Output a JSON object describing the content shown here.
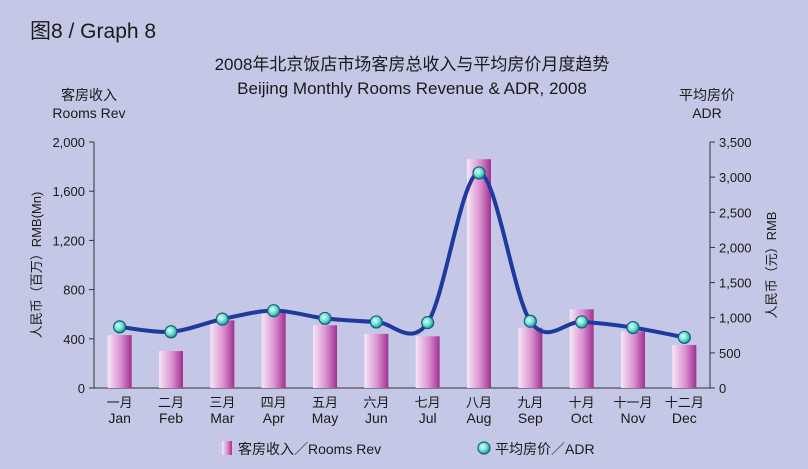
{
  "graph_label": "图8 / Graph 8",
  "colors": {
    "background": "#c5c7e6",
    "bar_light": "#f7e6f5",
    "bar_dark": "#a0308e",
    "line": "#1f3a9e",
    "marker_fill": "#5fe0c8",
    "marker_stroke": "#1c5a7a"
  },
  "chart_data": {
    "type": "bar+line",
    "title": "2008年北京饭店市场客房总收入与平均房价月度趋势",
    "subtitle": "Beijing Monthly Rooms Revenue & ADR, 2008",
    "left_axis": {
      "title_cn": "客房收入",
      "title_en": "Rooms Rev",
      "side_label": "人民币（百万）RMB(Mn)",
      "range": [
        0,
        2000
      ],
      "ticks": [
        "0",
        "400",
        "800",
        "1,200",
        "1,600",
        "2,000"
      ]
    },
    "right_axis": {
      "title_cn": "平均房价",
      "title_en": "ADR",
      "side_label": "人民币（元）RMB",
      "range": [
        0,
        3500
      ],
      "ticks": [
        "0",
        "500",
        "1,000",
        "1,500",
        "2,000",
        "2,500",
        "3,000",
        "3,500"
      ]
    },
    "categories_cn": [
      "一月",
      "二月",
      "三月",
      "四月",
      "五月",
      "六月",
      "七月",
      "八月",
      "九月",
      "十月",
      "十一月",
      "十二月"
    ],
    "categories_en": [
      "Jan",
      "Feb",
      "Mar",
      "Apr",
      "May",
      "Jun",
      "Jul",
      "Aug",
      "Sep",
      "Oct",
      "Nov",
      "Dec"
    ],
    "series": [
      {
        "name": "客房收入／Rooms Rev",
        "type": "bar",
        "axis": "left",
        "values": [
          430,
          300,
          550,
          630,
          510,
          440,
          420,
          1860,
          490,
          640,
          460,
          350
        ]
      },
      {
        "name": "平均房价／ADR",
        "type": "line",
        "axis": "right",
        "values": [
          870,
          800,
          980,
          1100,
          990,
          940,
          930,
          3060,
          950,
          940,
          860,
          720
        ]
      }
    ],
    "legend_position": "bottom-center"
  }
}
